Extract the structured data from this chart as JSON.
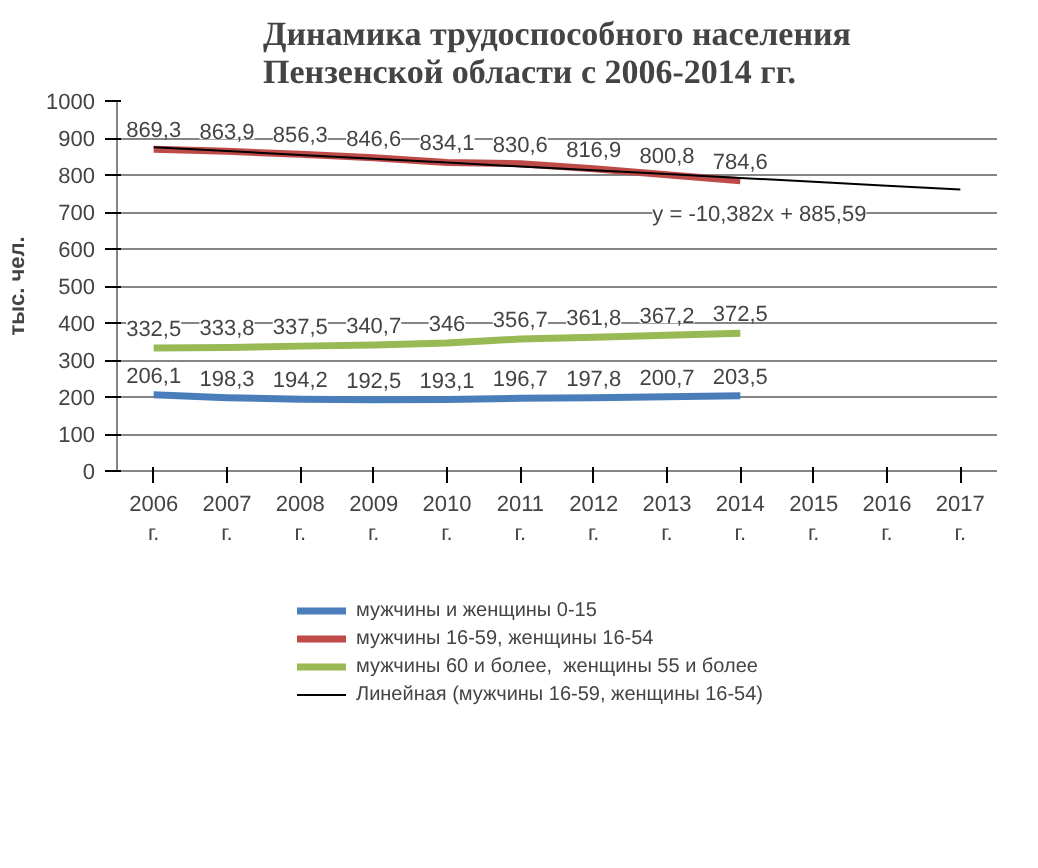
{
  "chart_data": {
    "type": "line",
    "title": "Динамика трудоспособного населения\nПензенской области с 2006-2014 гг.",
    "ylabel": "тыс. чел.",
    "categories": [
      "2006 г.",
      "2007 г.",
      "2008 г.",
      "2009 г.",
      "2010 г.",
      "2011 г.",
      "2012 г.",
      "2013 г.",
      "2014 г.",
      "2015 г.",
      "2016 г.",
      "2017 г."
    ],
    "series": [
      {
        "name": "мужчины и женщины 0-15",
        "color": "#4a7ebb",
        "values": [
          206.1,
          198.3,
          194.2,
          192.5,
          193.1,
          196.7,
          197.8,
          200.7,
          203.5,
          null,
          null,
          null
        ],
        "value_labels": [
          "206,1",
          "198,3",
          "194,2",
          "192,5",
          "193,1",
          "196,7",
          "197,8",
          "200,7",
          "203,5",
          null,
          null,
          null
        ]
      },
      {
        "name": "мужчины 16-59, женщины 16-54",
        "color": "#be4b48",
        "values": [
          869.3,
          863.9,
          856.3,
          846.6,
          834.1,
          830.6,
          816.9,
          800.8,
          784.6,
          null,
          null,
          null
        ],
        "value_labels": [
          "869,3",
          "863,9",
          "856,3",
          "846,6",
          "834,1",
          "830,6",
          "816,9",
          "800,8",
          "784,6",
          null,
          null,
          null
        ]
      },
      {
        "name": "мужчины 60 и более,  женщины 55 и более",
        "color": "#98b954",
        "values": [
          332.5,
          333.8,
          337.5,
          340.7,
          346,
          356.7,
          361.8,
          367.2,
          372.5,
          null,
          null,
          null
        ],
        "value_labels": [
          "332,5",
          "333,8",
          "337,5",
          "340,7",
          "346",
          "356,7",
          "361,8",
          "367,2",
          "372,5",
          null,
          null,
          null
        ]
      },
      {
        "name": "Линейная (мужчины 16-59, женщины 16-54)",
        "color": "#000000",
        "values": [
          875,
          865,
          854,
          844,
          834,
          823,
          813,
          803,
          792,
          782,
          771,
          761
        ]
      }
    ],
    "annotations": [
      "y = -10,382x + 885,59"
    ],
    "ylim": [
      0,
      1000
    ],
    "yticks": [
      0,
      100,
      200,
      300,
      400,
      500,
      600,
      700,
      800,
      900,
      1000
    ],
    "grid": "y",
    "legend": "bottom"
  }
}
